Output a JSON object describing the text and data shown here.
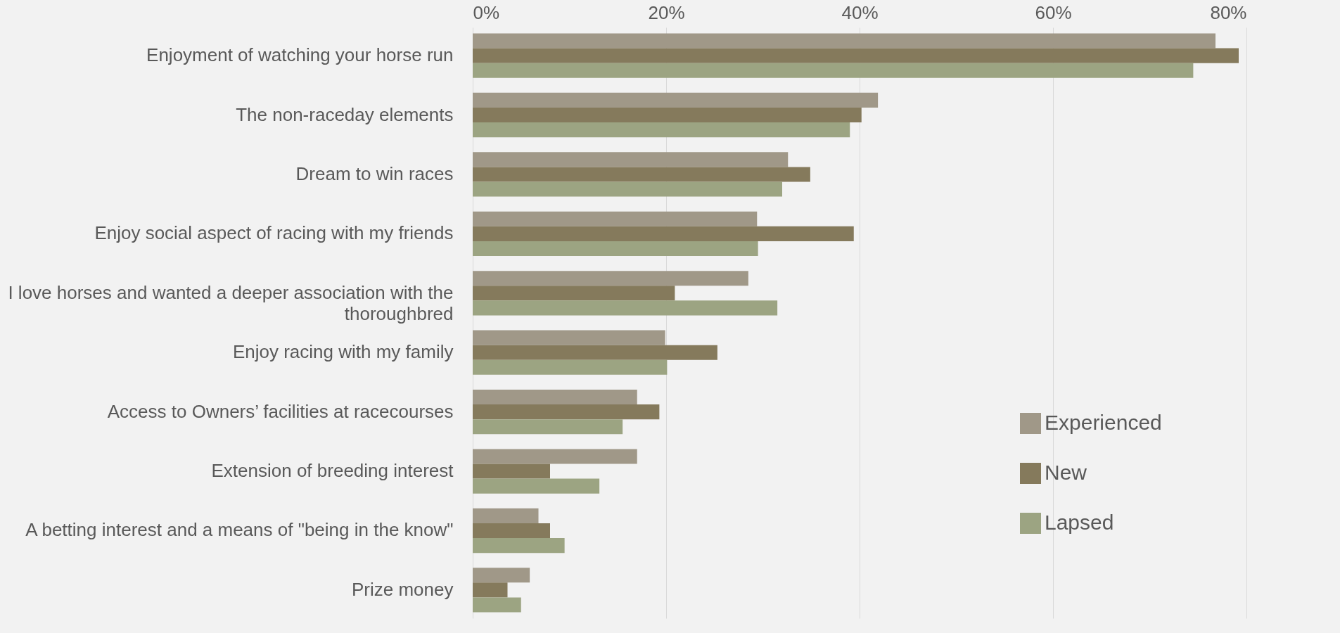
{
  "chart_data": {
    "type": "bar",
    "orientation": "horizontal",
    "categories": [
      "Enjoyment of watching your horse run",
      "The non-raceday elements",
      "Dream to win races",
      "Enjoy social aspect of racing with my friends",
      "I love horses and wanted a deeper association with the thoroughbred",
      "Enjoy racing with my family",
      "Access to Owners’ facilities at racecourses",
      "Extension of breeding interest",
      "A betting interest and a means of \"being in the know\"",
      "Prize money"
    ],
    "series": [
      {
        "name": "Experienced",
        "color": "#a09888",
        "values": [
          76.8,
          41.9,
          32.6,
          29.4,
          28.5,
          19.9,
          17.0,
          17.0,
          6.8,
          5.9
        ]
      },
      {
        "name": "New",
        "color": "#857a5c",
        "values": [
          79.2,
          40.2,
          34.9,
          39.4,
          20.9,
          25.3,
          19.3,
          8.0,
          8.0,
          3.6
        ]
      },
      {
        "name": "Lapsed",
        "color": "#9ca482",
        "values": [
          74.5,
          39.0,
          32.0,
          29.5,
          31.5,
          20.1,
          15.5,
          13.1,
          9.5,
          5.0
        ]
      }
    ],
    "xlim": [
      0,
      80
    ],
    "xticks": [
      {
        "value": 0,
        "label": "0%"
      },
      {
        "value": 20,
        "label": "20%"
      },
      {
        "value": 40,
        "label": "40%"
      },
      {
        "value": 60,
        "label": "60%"
      },
      {
        "value": 80,
        "label": "80%"
      }
    ],
    "grid": "x",
    "legend": "bottom right"
  }
}
